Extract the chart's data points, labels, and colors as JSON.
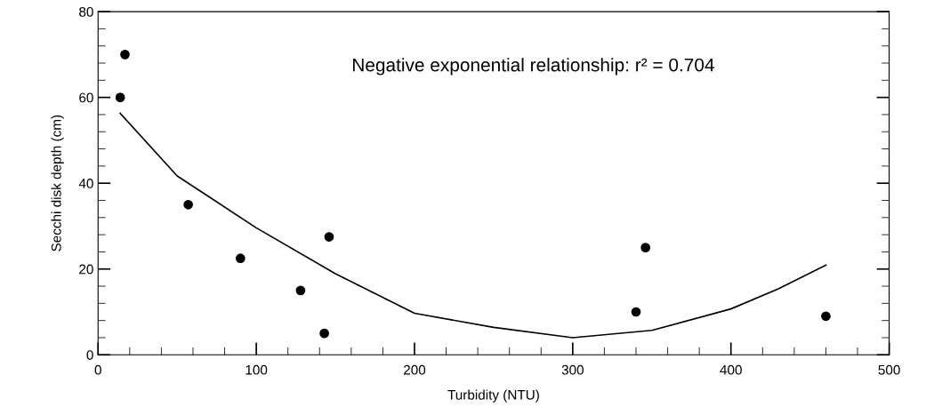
{
  "chart_data": {
    "type": "scatter",
    "xlabel": "Turbidity (NTU)",
    "ylabel": "Secchi disk depth (cm)",
    "annotations": [
      "Negative exponential relationship: r² = 0.704"
    ],
    "series": [
      {
        "color": "#000000",
        "marker": "circle",
        "x": [
          14,
          17,
          57,
          90,
          128,
          143,
          146,
          340,
          346,
          460
        ],
        "values": [
          60,
          70,
          35,
          22.5,
          15,
          5,
          27.5,
          10,
          25,
          9
        ]
      },
      {
        "type": "line",
        "color": "#000000",
        "marker": "none",
        "line_style": "solid",
        "x": [
          14,
          50,
          100,
          150,
          200,
          250,
          300,
          350,
          400,
          430,
          460
        ],
        "values": [
          56.3,
          41.7,
          29.6,
          18.9,
          9.7,
          6.4,
          4.0,
          5.7,
          10.7,
          15.4,
          20.9
        ]
      }
    ],
    "xlim": [
      0,
      500
    ],
    "xticks": [
      0,
      {
        "value": 20,
        "label": null
      },
      {
        "value": 40,
        "label": null
      },
      {
        "value": 60,
        "label": null
      },
      {
        "value": 80,
        "label": null
      },
      100,
      {
        "value": 120,
        "label": null
      },
      {
        "value": 140,
        "label": null
      },
      {
        "value": 160,
        "label": null
      },
      {
        "value": 180,
        "label": null
      },
      200,
      {
        "value": 220,
        "label": null
      },
      {
        "value": 240,
        "label": null
      },
      {
        "value": 260,
        "label": null
      },
      {
        "value": 280,
        "label": null
      },
      300,
      {
        "value": 320,
        "label": null
      },
      {
        "value": 340,
        "label": null
      },
      {
        "value": 360,
        "label": null
      },
      {
        "value": 380,
        "label": null
      },
      400,
      {
        "value": 420,
        "label": null
      },
      {
        "value": 440,
        "label": null
      },
      {
        "value": 460,
        "label": null
      },
      {
        "value": 480,
        "label": null
      },
      500
    ],
    "ylim": [
      0,
      80
    ],
    "yticks": [
      0,
      {
        "value": 4,
        "label": null
      },
      {
        "value": 8,
        "label": null
      },
      {
        "value": 12,
        "label": null
      },
      {
        "value": 16,
        "label": null
      },
      20,
      {
        "value": 24,
        "label": null
      },
      {
        "value": 28,
        "label": null
      },
      {
        "value": 32,
        "label": null
      },
      {
        "value": 36,
        "label": null
      },
      40,
      {
        "value": 44,
        "label": null
      },
      {
        "value": 48,
        "label": null
      },
      {
        "value": 52,
        "label": null
      },
      {
        "value": 56,
        "label": null
      },
      60,
      {
        "value": 64,
        "label": null
      },
      {
        "value": 68,
        "label": null
      },
      {
        "value": 72,
        "label": null
      },
      {
        "value": 76,
        "label": null
      },
      80
    ],
    "grid": false,
    "legend": false
  }
}
